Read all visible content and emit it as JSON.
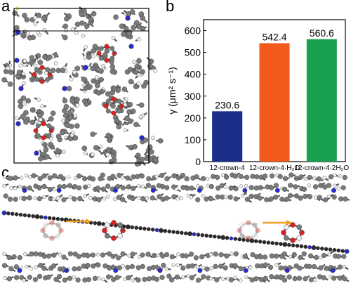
{
  "panels": {
    "a": "a",
    "b": "b",
    "c": "c"
  },
  "axes_a": {
    "label": "a"
  },
  "structure_a": {
    "description_colors": {
      "carbon": "#7a7a7a",
      "hydrogen": "#f0f0f0",
      "nitrogen": "#2a2acc",
      "oxygen": "#e02020"
    }
  },
  "chart_data": {
    "type": "bar",
    "categories": [
      "12-crown-4",
      "12-crown-4·H₂O",
      "12-crown-4·2H₂O"
    ],
    "values": [
      230.6,
      542.4,
      560.6
    ],
    "value_labels": [
      "230.6",
      "542.4",
      "560.6"
    ],
    "colors": [
      "#1b2f8a",
      "#f15a1a",
      "#1aa150"
    ],
    "ylabel": "γ (μm² s⁻¹)",
    "ylim": [
      0,
      650
    ],
    "yticks": [
      0,
      100,
      200,
      300,
      400,
      500,
      600
    ],
    "grid": false
  },
  "arrow_color": "#f0a020"
}
